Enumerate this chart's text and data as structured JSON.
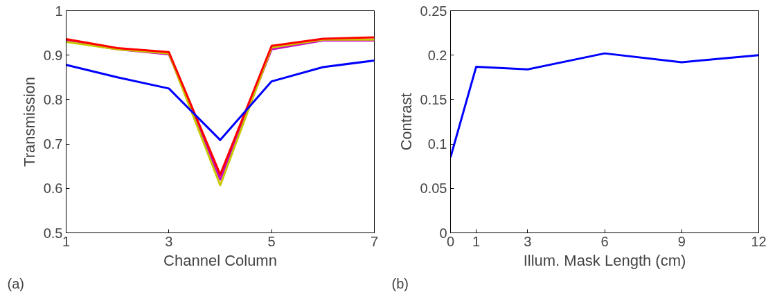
{
  "chart_data": [
    {
      "type": "line",
      "xlabel": "Channel Column",
      "ylabel": "Transmission",
      "annotations": [
        "(a)"
      ],
      "x": [
        1,
        2,
        3,
        4,
        5,
        6,
        7
      ],
      "xlim": [
        1,
        7
      ],
      "xticks": [
        1,
        3,
        5,
        7
      ],
      "ylim": [
        0.5,
        1
      ],
      "yticks": [
        0.5,
        0.6,
        0.7,
        0.8,
        0.9,
        1
      ],
      "grid": false,
      "series": [
        {
          "color": "#c800c8",
          "values": [
            0.932,
            0.913,
            0.902,
            0.62,
            0.913,
            0.933,
            0.933
          ]
        },
        {
          "color": "#c8c800",
          "values": [
            0.93,
            0.913,
            0.904,
            0.607,
            0.917,
            0.935,
            0.935
          ]
        },
        {
          "color": "#ff0000",
          "values": [
            0.936,
            0.916,
            0.907,
            0.631,
            0.921,
            0.937,
            0.94
          ]
        },
        {
          "color": "#0000ff",
          "values": [
            0.878,
            0.85,
            0.825,
            0.709,
            0.841,
            0.873,
            0.888
          ]
        }
      ]
    },
    {
      "type": "line",
      "xlabel": "Illum. Mask Length (cm)",
      "ylabel": "Contrast",
      "annotations": [
        "(b)"
      ],
      "x": [
        0,
        1,
        3,
        6,
        9,
        12
      ],
      "xlim": [
        0,
        12
      ],
      "xticks": [
        0,
        1,
        3,
        6,
        9,
        12
      ],
      "ylim": [
        0,
        0.25
      ],
      "yticks": [
        0,
        0.05,
        0.1,
        0.15,
        0.2,
        0.25
      ],
      "grid": false,
      "series": [
        {
          "color": "#0000ff",
          "values": [
            0.085,
            0.187,
            0.184,
            0.202,
            0.192,
            0.2
          ]
        }
      ]
    }
  ]
}
